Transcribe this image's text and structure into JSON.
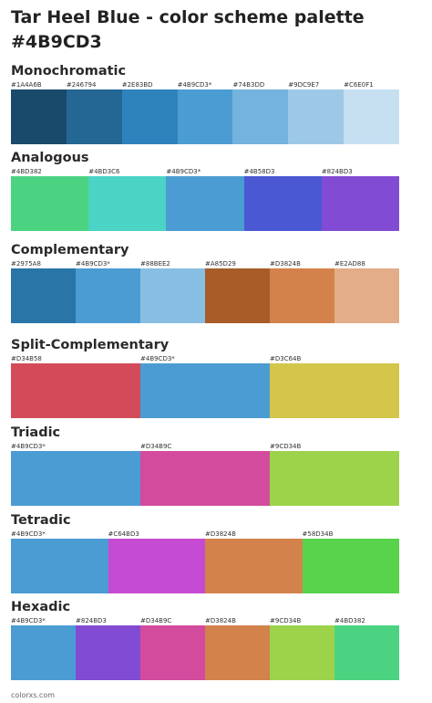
{
  "title_line1": "Tar Heel Blue - color scheme palette",
  "title_line2": "#4B9CD3",
  "sections": [
    {
      "name": "Monochromatic",
      "colors": [
        "#1A4A6B",
        "#246794",
        "#2E83BD",
        "#4B9CD3*",
        "#74B3DD",
        "#9DC9E7",
        "#C6E0F1"
      ]
    },
    {
      "name": "Analogous",
      "colors": [
        "#4BD382",
        "#4BD3C6",
        "#4B9CD3*",
        "#4B58D3",
        "#824BD3"
      ]
    },
    {
      "name": "Complementary",
      "colors": [
        "#2975A8",
        "#4B9CD3*",
        "#88BEE2",
        "#A85D29",
        "#D3824B",
        "#E2AD88"
      ]
    },
    {
      "name": "Split-Complementary",
      "colors": [
        "#D34B58",
        "#4B9CD3*",
        "#D3C64B"
      ]
    },
    {
      "name": "Triadic",
      "colors": [
        "#4B9CD3*",
        "#D34B9C",
        "#9CD34B"
      ]
    },
    {
      "name": "Tetradic",
      "colors": [
        "#4B9CD3*",
        "#C64BD3",
        "#D3824B",
        "#58D34B"
      ]
    },
    {
      "name": "Hexadic",
      "colors": [
        "#4B9CD3*",
        "#824BD3",
        "#D34B9C",
        "#D3824B",
        "#9CD34B",
        "#4BD382"
      ]
    }
  ],
  "footer": "colorxs.com"
}
